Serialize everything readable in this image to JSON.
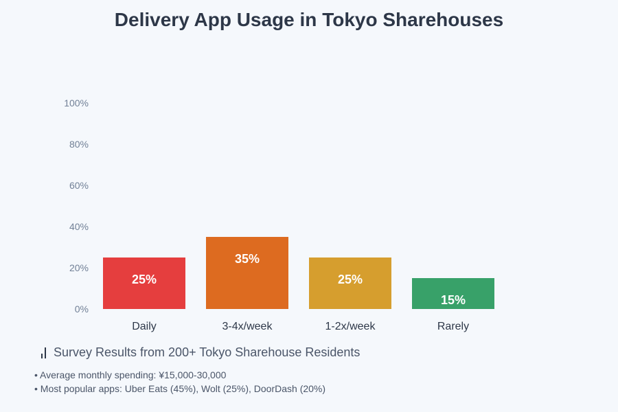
{
  "title": "Delivery App Usage in Tokyo Sharehouses",
  "chart_data": {
    "type": "bar",
    "title": "Delivery App Usage in Tokyo Sharehouses",
    "categories": [
      "Daily",
      "3-4x/week",
      "1-2x/week",
      "Rarely"
    ],
    "values": [
      25,
      35,
      25,
      15
    ],
    "value_labels": [
      "25%",
      "35%",
      "25%",
      "15%"
    ],
    "bar_colors": [
      "#e53e3e",
      "#dd6b20",
      "#d69e2e",
      "#38a169"
    ],
    "ylim": [
      0,
      100
    ],
    "yticks": [
      0,
      20,
      40,
      60,
      80,
      100
    ],
    "ytick_labels": [
      "0%",
      "20%",
      "40%",
      "60%",
      "80%",
      "100%"
    ],
    "xlabel": "",
    "ylabel": "",
    "grid": false,
    "legend": false
  },
  "survey": {
    "icon": "bar-chart-icon",
    "heading": "Survey Results from 200+ Tokyo Sharehouse Residents",
    "notes": [
      "• Average monthly spending: ¥15,000-30,000",
      "• Most popular apps: Uber Eats (45%), Wolt (25%), DoorDash (20%)"
    ]
  }
}
